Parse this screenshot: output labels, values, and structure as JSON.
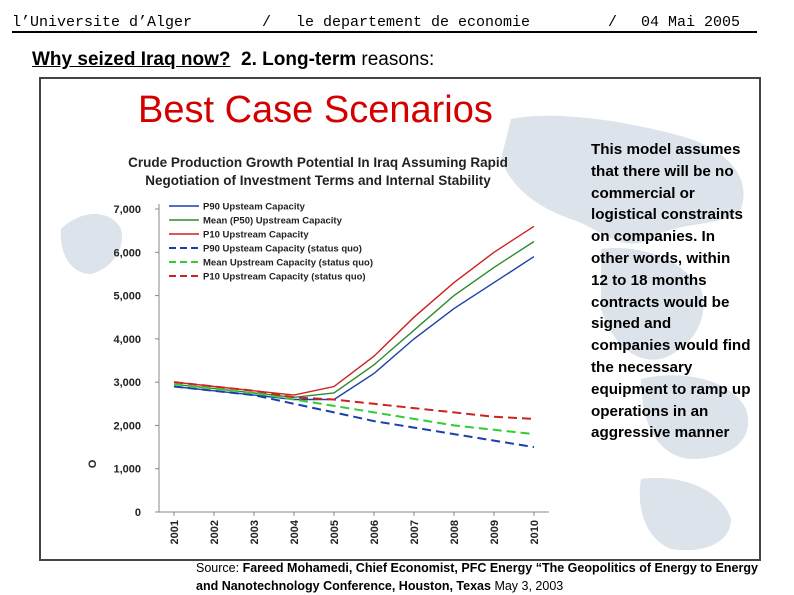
{
  "header": {
    "institution": "l’Universite d’Alger",
    "sep1": "/",
    "department": "le departement de economie",
    "sep2": "/",
    "date": "04 Mai 2005"
  },
  "subtitle": {
    "question": "Why seized Iraq now?",
    "point": "2. Long-term",
    "rest": "reasons:"
  },
  "scenario_heading": "Best Case Scenarios",
  "model_note": "This model assumes that there will be no commercial or logistical constraints on companies. In other words, within 12 to 18 months contracts would be signed and companies would find the necessary equipment to ramp up operations in an aggressive manner",
  "source": {
    "label": "Source:",
    "author": "Fareed Mohamedi, Chief Economist, PFC Energy",
    "title": "“The Geopolitics of Energy to Energy and Nanotechnology Conference",
    "place": ", Houston, Texas",
    "date": "May 3, 2003"
  },
  "colors": {
    "accent_red": "#d40000",
    "p90": "#1f3fa8",
    "mean": "#2e8b2e",
    "p10": "#cc2222"
  },
  "chart_data": {
    "type": "line",
    "title": "Crude Production Growth Potential In Iraq Assuming Rapid Negotiation of Investment Terms and Internal Stability",
    "xlabel": "",
    "ylabel": "O",
    "x": [
      "2001",
      "2002",
      "2003",
      "2004",
      "2005",
      "2006",
      "2007",
      "2008",
      "2009",
      "2010"
    ],
    "ylim": [
      0,
      7000
    ],
    "yticks": [
      "0",
      "1,000",
      "2,000",
      "3,000",
      "4,000",
      "5,000",
      "6,000",
      "7,000"
    ],
    "legend_position": "top-left",
    "grid": false,
    "series": [
      {
        "name": "P90 Upsteam Capacity",
        "color": "#1f3fa8",
        "dash": false,
        "values": [
          2900,
          2800,
          2700,
          2600,
          2600,
          3200,
          4000,
          4700,
          5300,
          5900
        ]
      },
      {
        "name": "Mean (P50) Upstream Capacity",
        "color": "#2e8b2e",
        "dash": false,
        "values": [
          2950,
          2850,
          2750,
          2650,
          2750,
          3400,
          4200,
          5000,
          5650,
          6250
        ]
      },
      {
        "name": "P10 Upstream Capacity",
        "color": "#cc2222",
        "dash": false,
        "values": [
          3000,
          2900,
          2800,
          2700,
          2900,
          3600,
          4500,
          5300,
          6000,
          6600
        ]
      },
      {
        "name": "P90 Upsteam Capacity (status quo)",
        "color": "#1f3fa8",
        "dash": true,
        "values": [
          2900,
          2800,
          2700,
          2500,
          2300,
          2100,
          1950,
          1800,
          1650,
          1500
        ]
      },
      {
        "name": "Mean Upstream Capacity (status quo)",
        "color": "#33cc33",
        "dash": true,
        "values": [
          2950,
          2850,
          2750,
          2600,
          2450,
          2300,
          2150,
          2000,
          1900,
          1800
        ]
      },
      {
        "name": "P10 Upstream Capacity (status quo)",
        "color": "#cc2222",
        "dash": true,
        "values": [
          3000,
          2900,
          2800,
          2650,
          2600,
          2500,
          2400,
          2300,
          2200,
          2150
        ]
      }
    ]
  }
}
